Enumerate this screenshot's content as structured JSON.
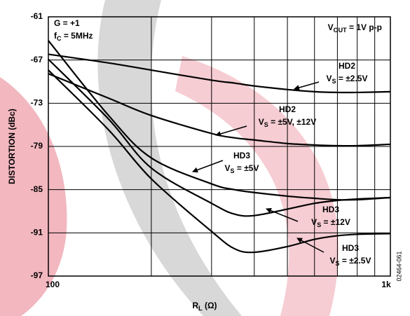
{
  "chart_data": {
    "type": "line",
    "ylabel": "DISTORTION (dBc)",
    "xlabel": [
      "R",
      "L",
      " (Ω)"
    ],
    "figure_id": "02464-061",
    "log_x": true,
    "grid": true,
    "xlim": [
      100,
      1000
    ],
    "xticks": [
      {
        "value": 100,
        "label": "100"
      },
      {
        "value": 1000,
        "label": "1k"
      }
    ],
    "xgrid": [
      200,
      300,
      400,
      500,
      600,
      700,
      800,
      900
    ],
    "ylim": [
      -97,
      -61
    ],
    "yticks": [
      -61,
      -67,
      -73,
      -79,
      -85,
      -91,
      -97
    ],
    "x": [
      100,
      150,
      200,
      300,
      350,
      400,
      500,
      600,
      700,
      800,
      1000
    ],
    "series": [
      {
        "color": "#000000",
        "values": [
          -66.2,
          -67.4,
          -68.4,
          -69.8,
          -70.2,
          -70.6,
          -71.1,
          -71.4,
          -71.5,
          -71.5,
          -71.4
        ]
      },
      {
        "color": "#000000",
        "values": [
          -68.9,
          -72.3,
          -74.7,
          -77.2,
          -77.8,
          -78.1,
          -78.6,
          -78.8,
          -78.9,
          -78.9,
          -78.7
        ]
      },
      {
        "color": "#000000",
        "values": [
          -64.3,
          -74.7,
          -80.6,
          -84.2,
          -85.0,
          -85.4,
          -85.9,
          -86.2,
          -86.4,
          -86.4,
          -86.1
        ]
      },
      {
        "color": "#000000",
        "values": [
          -66.9,
          -75.2,
          -82.0,
          -86.9,
          -88.4,
          -88.6,
          -87.7,
          -86.9,
          -86.5,
          -86.3,
          -86.1
        ]
      },
      {
        "color": "#000000",
        "values": [
          -68.4,
          -76.7,
          -83.5,
          -90.8,
          -93.2,
          -93.7,
          -92.9,
          -91.9,
          -91.4,
          -91.2,
          -91.1
        ]
      }
    ],
    "annotations": [
      {
        "lines": [
          [
            "G = +1"
          ],
          [
            "f",
            "C",
            " = 5MHz"
          ]
        ]
      },
      {
        "lines": [
          [
            "V",
            "OUT",
            " = 1V p-p"
          ]
        ]
      },
      {
        "lines": [
          [
            "HD2"
          ],
          [
            "V",
            "S",
            " = ±2.5V"
          ]
        ]
      },
      {
        "lines": [
          [
            "HD2"
          ],
          [
            "V",
            "S",
            " = ±5V, ±12V"
          ]
        ]
      },
      {
        "lines": [
          [
            "HD3"
          ],
          [
            "V",
            "S",
            " = ±5V"
          ]
        ]
      },
      {
        "lines": [
          [
            "HD3"
          ],
          [
            "V",
            "S",
            " = ±12V"
          ]
        ]
      },
      {
        "lines": [
          [
            "HD3"
          ],
          [
            "V",
            "S",
            " = ±2.5V"
          ]
        ]
      }
    ]
  }
}
